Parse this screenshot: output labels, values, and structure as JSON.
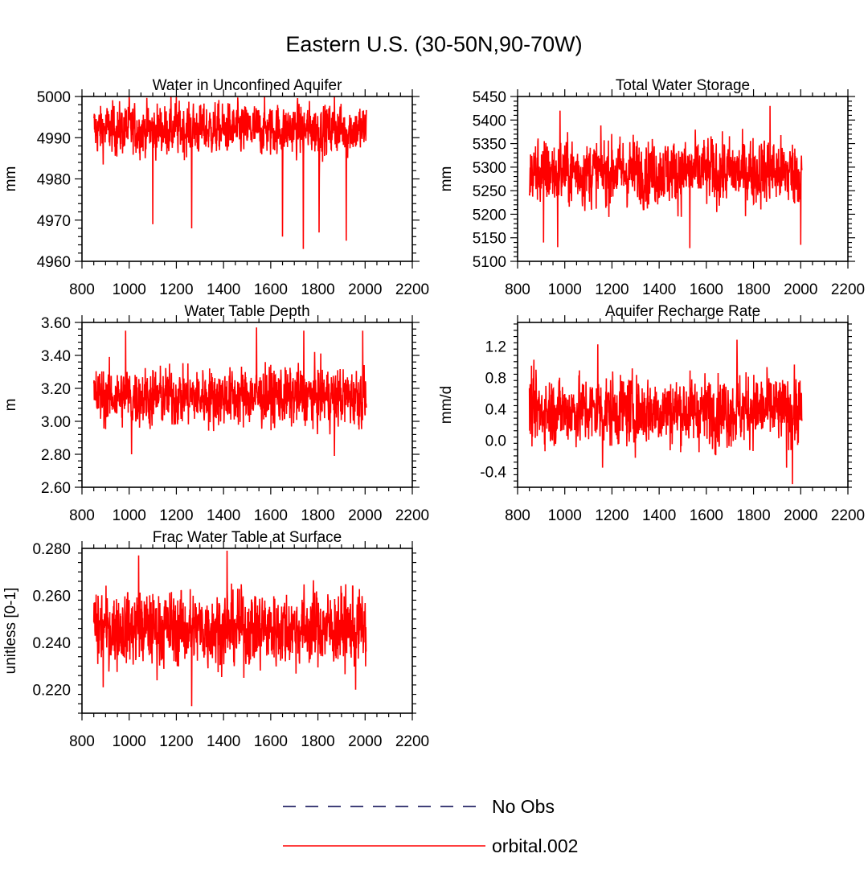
{
  "figure": {
    "title": "Eastern U.S. (30-50N,90-70W)",
    "series_color": "#ff0000",
    "noobs_color": "#00004d"
  },
  "legend": {
    "entries": [
      {
        "label": "No Obs",
        "style": "dashed",
        "color": "#00004d"
      },
      {
        "label": "orbital.002",
        "style": "solid",
        "color": "#ff0000"
      }
    ]
  },
  "chart_data": [
    {
      "type": "line",
      "title": "Water in Unconfined Aquifer",
      "xlabel": "",
      "ylabel": "mm",
      "xlim": [
        800,
        2200
      ],
      "ylim": [
        4960,
        5000
      ],
      "xticks": [
        800,
        1000,
        1200,
        1400,
        1600,
        1800,
        2000,
        2200
      ],
      "yticks": [
        4960,
        4970,
        4980,
        4990,
        5000
      ],
      "ytick_labels": [
        "4960",
        "4970",
        "4980",
        "4990",
        "5000"
      ],
      "x_range": [
        850,
        2005
      ],
      "series": [
        {
          "name": "orbital.002",
          "mean": 4992,
          "spread": 3.5,
          "max": 5000,
          "min": 4963,
          "extremes": [
            [
              1100,
              4969
            ],
            [
              1265,
              4968
            ],
            [
              1650,
              4966
            ],
            [
              1738,
              4963
            ],
            [
              1805,
              4967
            ],
            [
              1920,
              4965
            ],
            [
              1000,
              5000
            ],
            [
              1200,
              5000
            ],
            [
              1870,
              5000
            ]
          ]
        }
      ]
    },
    {
      "type": "line",
      "title": "Total Water Storage",
      "xlabel": "",
      "ylabel": "mm",
      "xlim": [
        800,
        2200
      ],
      "ylim": [
        5100,
        5450
      ],
      "xticks": [
        800,
        1000,
        1200,
        1400,
        1600,
        1800,
        2000,
        2200
      ],
      "yticks": [
        5100,
        5150,
        5200,
        5250,
        5300,
        5350,
        5400,
        5450
      ],
      "ytick_labels": [
        "5100",
        "5150",
        "5200",
        "5250",
        "5300",
        "5350",
        "5400",
        "5450"
      ],
      "x_range": [
        850,
        2005
      ],
      "series": [
        {
          "name": "orbital.002",
          "mean": 5290,
          "spread": 40,
          "max": 5430,
          "min": 5128,
          "extremes": [
            [
              980,
              5420
            ],
            [
              1870,
              5430
            ],
            [
              1530,
              5128
            ],
            [
              970,
              5130
            ],
            [
              2000,
              5135
            ],
            [
              910,
              5140
            ]
          ]
        }
      ]
    },
    {
      "type": "line",
      "title": "Water Table Depth",
      "xlabel": "",
      "ylabel": "m",
      "xlim": [
        800,
        2200
      ],
      "ylim": [
        2.6,
        3.6
      ],
      "xticks": [
        800,
        1000,
        1200,
        1400,
        1600,
        1800,
        2000,
        2200
      ],
      "yticks": [
        2.6,
        2.8,
        3.0,
        3.2,
        3.4,
        3.6
      ],
      "ytick_labels": [
        "2.60",
        "2.80",
        "3.00",
        "3.20",
        "3.40",
        "3.60"
      ],
      "x_range": [
        850,
        2005
      ],
      "series": [
        {
          "name": "orbital.002",
          "mean": 3.15,
          "spread": 0.1,
          "max": 3.57,
          "min": 2.79,
          "extremes": [
            [
              1540,
              3.57
            ],
            [
              1740,
              3.55
            ],
            [
              985,
              3.55
            ],
            [
              1870,
              2.79
            ],
            [
              1010,
              2.8
            ],
            [
              1990,
              3.55
            ]
          ]
        }
      ]
    },
    {
      "type": "line",
      "title": "Aquifer Recharge Rate",
      "xlabel": "",
      "ylabel": "mm/d",
      "xlim": [
        800,
        2200
      ],
      "ylim": [
        -0.6,
        1.5
      ],
      "xticks": [
        800,
        1000,
        1200,
        1400,
        1600,
        1800,
        2000,
        2200
      ],
      "yticks": [
        -0.4,
        0.0,
        0.4,
        0.8,
        1.2
      ],
      "ytick_labels": [
        "-0.4",
        "0.0",
        "0.4",
        "0.8",
        "1.2"
      ],
      "x_range": [
        850,
        2005
      ],
      "series": [
        {
          "name": "orbital.002",
          "mean": 0.38,
          "spread": 0.25,
          "max": 1.28,
          "min": -0.56,
          "extremes": [
            [
              1730,
              1.28
            ],
            [
              1140,
              1.22
            ],
            [
              1965,
              -0.56
            ],
            [
              1160,
              -0.35
            ],
            [
              1940,
              -0.35
            ]
          ]
        }
      ]
    },
    {
      "type": "line",
      "title": "Frac Water Table at Surface",
      "xlabel": "",
      "ylabel": "unitless [0-1]",
      "xlim": [
        800,
        2200
      ],
      "ylim": [
        0.21,
        0.28
      ],
      "xticks": [
        800,
        1000,
        1200,
        1400,
        1600,
        1800,
        2000,
        2200
      ],
      "yticks": [
        0.22,
        0.24,
        0.26,
        0.28
      ],
      "ytick_labels": [
        "0.220",
        "0.240",
        "0.260",
        "0.280"
      ],
      "x_range": [
        850,
        2005
      ],
      "series": [
        {
          "name": "orbital.002",
          "mean": 0.246,
          "spread": 0.009,
          "max": 0.279,
          "min": 0.213,
          "extremes": [
            [
              1415,
              0.279
            ],
            [
              1040,
              0.277
            ],
            [
              1265,
              0.213
            ],
            [
              890,
              0.221
            ],
            [
              1960,
              0.22
            ]
          ]
        }
      ]
    }
  ]
}
